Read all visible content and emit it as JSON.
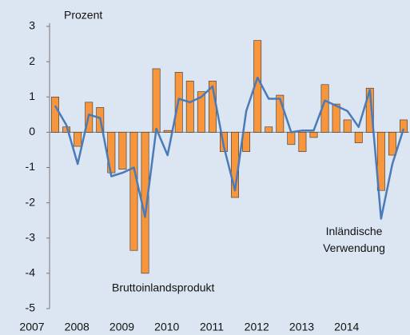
{
  "chart_data": {
    "type": "bar_line",
    "y_label": "Prozent",
    "categories": [
      "2007",
      null,
      null,
      null,
      "2008",
      null,
      null,
      null,
      "2009",
      null,
      null,
      null,
      "2010",
      null,
      null,
      null,
      "2011",
      null,
      null,
      null,
      "2012",
      null,
      null,
      null,
      "2013",
      null,
      null,
      null,
      "2014",
      null,
      null,
      null
    ],
    "series": [
      {
        "name": "Bruttoinlandsprodukt",
        "type": "bar",
        "color": "#f7963c",
        "values": [
          1.0,
          0.15,
          -0.4,
          0.85,
          0.7,
          -1.15,
          -1.05,
          -3.35,
          -4.0,
          1.8,
          0.05,
          1.7,
          1.45,
          1.15,
          1.45,
          -0.55,
          -1.85,
          -0.55,
          2.6,
          0.15,
          1.05,
          -0.35,
          -0.55,
          -0.15,
          1.35,
          0.8,
          0.35,
          -0.3,
          1.25,
          -1.65,
          -0.65,
          0.35
        ]
      },
      {
        "name": "Inländische Verwendung",
        "type": "line",
        "color": "#4a7ab8",
        "values": [
          0.75,
          0.2,
          -0.9,
          0.5,
          0.4,
          -1.25,
          -1.15,
          -1.0,
          -2.4,
          0.1,
          -0.65,
          0.95,
          0.85,
          1.0,
          1.3,
          -0.4,
          -1.65,
          0.6,
          1.55,
          0.95,
          0.95,
          0.0,
          0.05,
          0.05,
          0.9,
          0.75,
          0.6,
          0.15,
          1.2,
          -2.45,
          -0.9,
          0.1
        ]
      }
    ],
    "ylim": [
      -5,
      3
    ],
    "yticks": [
      -5,
      -4,
      -3,
      -2,
      -1,
      0,
      1,
      2,
      3
    ]
  }
}
